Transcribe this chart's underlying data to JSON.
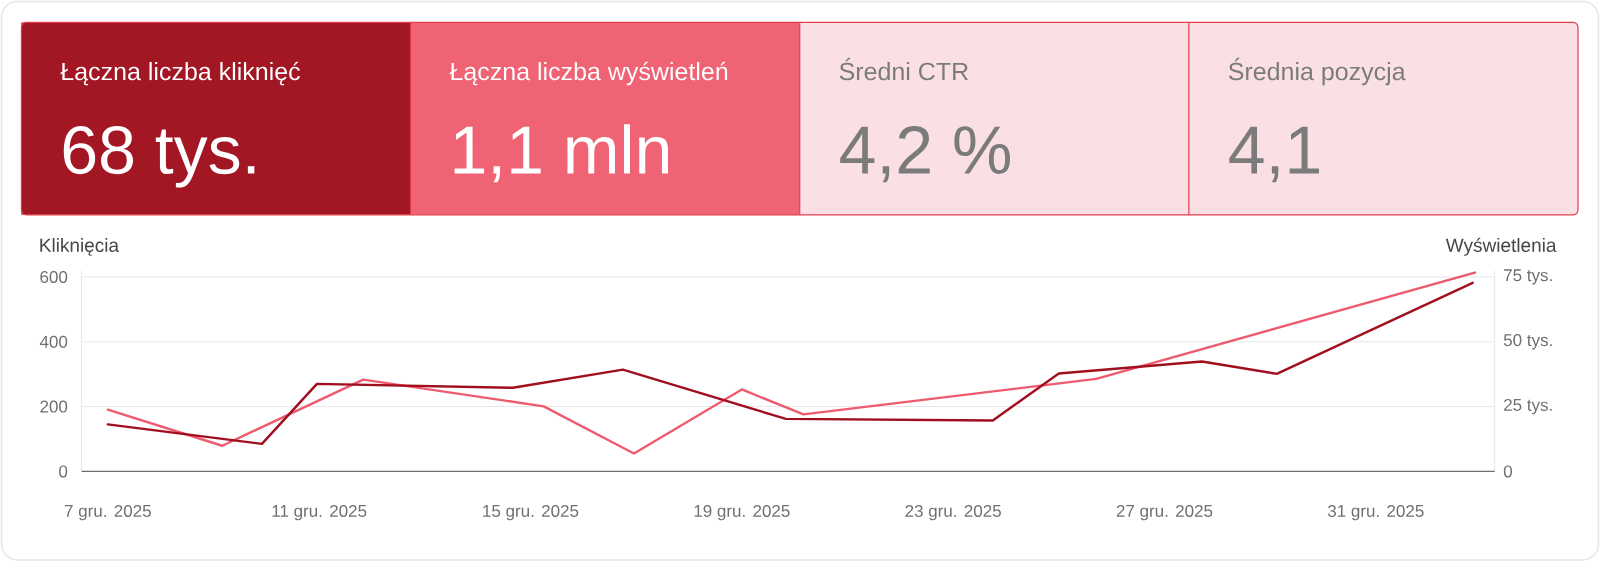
{
  "chart_data": [
    {
      "type": "other",
      "categories": [
        "Łączna liczba kliknięć",
        "Łączna liczba wyświetleń",
        "Średni CTR",
        "Średnia pozycja"
      ],
      "value_labels": [
        "68 tys.",
        "1,1 mln",
        "4,2 %",
        "4,1"
      ],
      "colors": [
        "#a31624",
        "#ef6374",
        "#fae0e4",
        "#fae0e4"
      ]
    },
    {
      "type": "line",
      "ylabel": "Kliknięcia",
      "y2label": "Wyświetlenia",
      "xlim": [
        "2025-12-06T12:00",
        "2026-01-02T06:00"
      ],
      "xticks": [
        {
          "value": "2025-12-07",
          "label": "7 gru. 2025"
        },
        {
          "value": "2025-12-11",
          "label": "11 gru. 2025"
        },
        {
          "value": "2025-12-15",
          "label": "15 gru. 2025"
        },
        {
          "value": "2025-12-19",
          "label": "19 gru. 2025"
        },
        {
          "value": "2025-12-23",
          "label": "23 gru. 2025"
        },
        {
          "value": "2025-12-27",
          "label": "27 gru. 2025"
        },
        {
          "value": "2025-12-31",
          "label": "31 gru. 2025"
        }
      ],
      "ylim": [
        0,
        620
      ],
      "yticks": [
        0,
        200,
        400,
        600
      ],
      "y2lim": [
        0,
        77.5
      ],
      "y2ticks": [
        0,
        {
          "value": 25,
          "label": "25 tys."
        },
        {
          "value": 50,
          "label": "50 tys."
        },
        {
          "value": 75,
          "label": "75 tys."
        }
      ],
      "grid": "y",
      "line_style": "solid",
      "series": [
        {
          "color": "#a10f1f",
          "x": [
            "2025-12-07T00:00",
            "2025-12-09T22:00",
            "2025-12-10T23:00",
            "2025-12-14T16:00",
            "2025-12-16T18:00",
            "2025-12-19T20:00",
            "2025-12-23T18:00",
            "2025-12-25T00:00",
            "2025-12-27T17:00",
            "2025-12-29T03:00",
            "2026-01-01T20:00"
          ],
          "values": [
            145,
            85,
            270,
            258,
            314,
            162,
            157,
            302,
            339,
            301,
            582
          ]
        },
        {
          "color": "#ee5b6f",
          "axis": "y2",
          "x": [
            "2025-12-07T00:00",
            "2025-12-09T04:00",
            "2025-12-11T20:00",
            "2025-12-15T06:00",
            "2025-12-16T23:00",
            "2025-12-19T00:00",
            "2025-12-20T04:00",
            "2025-12-25T17:00",
            "2026-01-01T21:00"
          ],
          "values": [
            23.8,
            9.9,
            35.4,
            25.1,
            6.9,
            31.6,
            22.0,
            35.7,
            76.7
          ]
        }
      ]
    }
  ]
}
